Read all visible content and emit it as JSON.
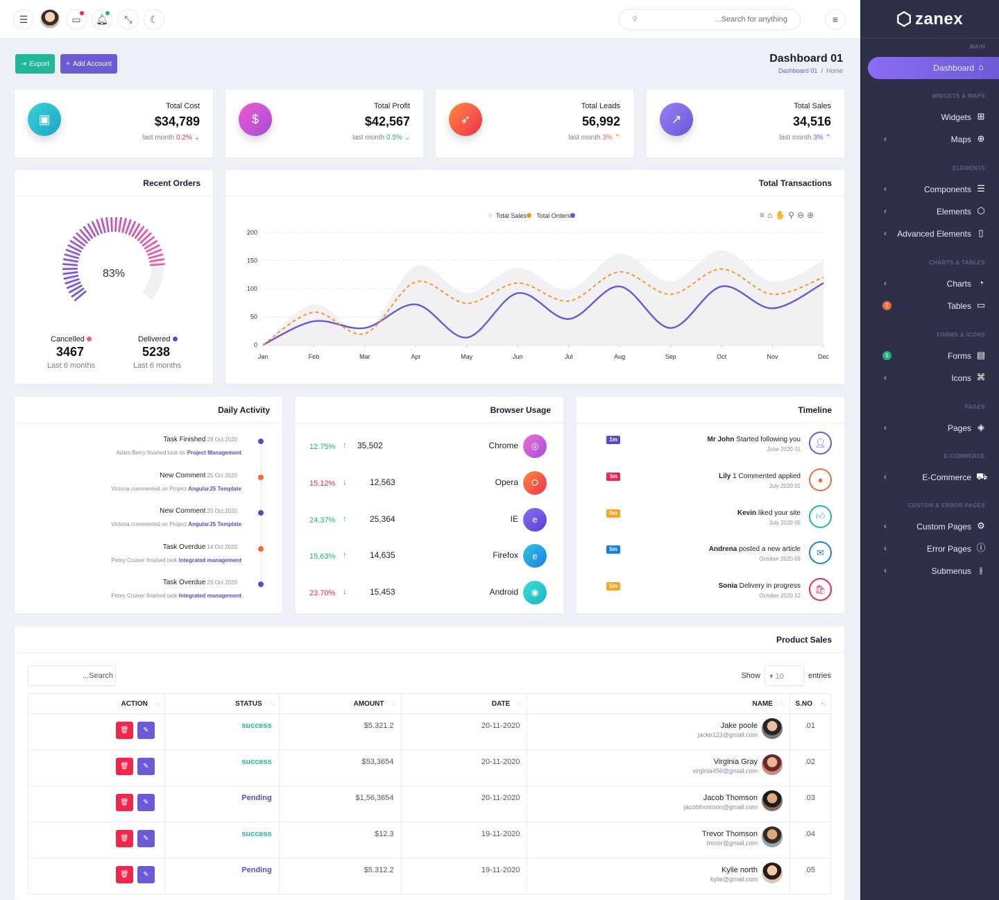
{
  "header": {
    "search_placeholder": "...Search for anything"
  },
  "sidebar": {
    "brand": "zanex",
    "sections": {
      "main": "MAIN",
      "widgets": "WIDGETS & MAPS",
      "elements": "ELEMENTS",
      "charts": "CHARTS & TABLES",
      "forms": "FORMS & ICONS",
      "pages": "PAGES",
      "ecom": "E-COMMERCE",
      "custom": "CUSTOM & ERROR PAGES"
    },
    "items": [
      {
        "label": "Dashboard"
      },
      {
        "label": "Widgets"
      },
      {
        "label": "Maps"
      },
      {
        "label": "Components"
      },
      {
        "label": "Elements"
      },
      {
        "label": "Advanced Elements"
      },
      {
        "label": "Charts"
      },
      {
        "label": "Tables",
        "badge": "2"
      },
      {
        "label": "Forms",
        "badge": "5"
      },
      {
        "label": "Icons"
      },
      {
        "label": "Pages"
      },
      {
        "label": "E-Commerce"
      },
      {
        "label": "Custom Pages"
      },
      {
        "label": "Error Pages"
      },
      {
        "label": "Submenus"
      }
    ]
  },
  "toolbar": {
    "export": "Export",
    "add_account": "Add Account"
  },
  "page": {
    "title": "Dashboard 01",
    "crumb_link": "Dashboard 01",
    "crumb_sep": "/",
    "crumb_current": "Home"
  },
  "stats": [
    {
      "title": "Total Cost",
      "value": "$34,789",
      "sub": "last month",
      "delta": "0.2%",
      "dir": "down",
      "color": "#e8344f"
    },
    {
      "title": "Total Profit",
      "value": "$42,567",
      "sub": "last month",
      "delta": "0.5%",
      "dir": "down",
      "color": "#21b27b"
    },
    {
      "title": "Total Leads",
      "value": "56,992",
      "sub": "last month",
      "delta": "3%",
      "dir": "up",
      "color": "#f26a3a"
    },
    {
      "title": "Total Sales",
      "value": "34,516",
      "sub": "last month",
      "delta": "3%",
      "dir": "up",
      "color": "#6a5ad6"
    }
  ],
  "recent_orders": {
    "title": "Recent Orders",
    "percent": "83%",
    "percent_value": 83,
    "cancelled_label": "Cancelled",
    "cancelled": "3467",
    "cancelled_sub": "Last 6 months",
    "delivered_label": "Delivered",
    "delivered": "5238",
    "delivered_sub": "Last 6 months"
  },
  "transactions": {
    "title": "Total Transactions",
    "legend": [
      "Total Sales",
      "Total Orders"
    ]
  },
  "chart_data": {
    "type": "line",
    "categories": [
      "Jan",
      "Feb",
      "Mar",
      "Apr",
      "May",
      "Jun",
      "Jul",
      "Aug",
      "Sep",
      "Oct",
      "Nov",
      "Dec"
    ],
    "ylim": [
      0,
      200
    ],
    "yticks": [
      0,
      50,
      100,
      150,
      200
    ],
    "series": [
      {
        "name": "Total Sales",
        "color": "#f5962b",
        "values": [
          0,
          58,
          20,
          112,
          74,
          110,
          78,
          130,
          90,
          135,
          90,
          120
        ]
      },
      {
        "name": "Total Orders",
        "color": "#6a56d6",
        "values": [
          0,
          42,
          30,
          72,
          13,
          92,
          46,
          104,
          30,
          104,
          65,
          110
        ]
      }
    ]
  },
  "daily_activity": {
    "title": "Daily Activity",
    "items": [
      {
        "title": "Task Finished",
        "date": "29 Oct 2020",
        "pre": "Adam Berry finished task on",
        "link": "Project Management",
        "color": "#5a4bc4"
      },
      {
        "title": "New Comment",
        "date": "25 Oct 2020",
        "pre": "Victoria commented on Project",
        "link": "AngularJS Template",
        "color": "#f26a3a"
      },
      {
        "title": "New Comment",
        "date": "25 Oct 2020",
        "pre": "Victoria commented on Project",
        "link": "AngularJS Template",
        "color": "#5a4bc4"
      },
      {
        "title": "Task Overdue",
        "date": "14 Oct 2020",
        "pre": "Petey Cruiser finished task",
        "link": "Integrated management",
        "color": "#f26a3a"
      },
      {
        "title": "Task Overdue",
        "date": "29 Oct 2020",
        "pre": "Petey Cruiser finished task",
        "link": "Integrated management",
        "color": "#5a4bc4"
      }
    ]
  },
  "browser_usage": {
    "title": "Browser Usage",
    "items": [
      {
        "pct": "12.75%",
        "dir": "up",
        "num": "35,502",
        "name": "Chrome"
      },
      {
        "pct": "15.12%",
        "dir": "down",
        "num": "12,563",
        "name": "Opera"
      },
      {
        "pct": "24.37%",
        "dir": "up",
        "num": "25,364",
        "name": "IE"
      },
      {
        "pct": "15,63%",
        "dir": "up",
        "num": "14,635",
        "name": "Firefox"
      },
      {
        "pct": "23.70%",
        "dir": "down",
        "num": "15,453",
        "name": "Android"
      }
    ]
  },
  "timeline": {
    "title": "Timeline",
    "items": [
      {
        "tag": "1m",
        "who": "Mr John",
        "action": "Started following you",
        "date": "June 2020 01"
      },
      {
        "tag": "3m",
        "who": "Lily",
        "action": "1 Commented applied",
        "date": "July 2020 01"
      },
      {
        "tag": "5m",
        "who": "Kevin",
        "action": "liked your site",
        "date": "July 2020 05"
      },
      {
        "tag": "5m",
        "who": "Andrena",
        "action": "posted a new article",
        "date": "October 2020 09"
      },
      {
        "tag": "5m",
        "who": "Sonia",
        "action": "Delivery in progress",
        "date": "October 2020 12"
      }
    ]
  },
  "product_sales": {
    "title": "Product Sales",
    "search_placeholder": "...Search",
    "show": "Show",
    "entries_value": "10",
    "entries": "entries",
    "columns": [
      "ACTION",
      "STATUS",
      "AMOUNT",
      "DATE",
      "NAME",
      "S.NO"
    ],
    "rows": [
      {
        "status": "success",
        "amount": "$5.321.2",
        "date": "20-11-2020",
        "name": "Jake poole",
        "email": "jacke123@gmail.com",
        "sno": ".01"
      },
      {
        "status": "success",
        "amount": "$53,3654",
        "date": "20-11-2020",
        "name": "Virginia Gray",
        "email": "virginia456@gmail.com",
        "sno": ".02"
      },
      {
        "status": "Pending",
        "amount": "$1,56,3654",
        "date": "20-11-2020",
        "name": "Jacob Thomson",
        "email": "jacobthomson@gmail.com",
        "sno": ".03"
      },
      {
        "status": "success",
        "amount": "$12.3",
        "date": "19-11-2020",
        "name": "Trevor Thomson",
        "email": "trevor@gmail.com",
        "sno": ".04"
      },
      {
        "status": "Pending",
        "amount": "$5.312.2",
        "date": "19-11-2020",
        "name": "Kylie north",
        "email": "kylie@gmail.com",
        "sno": ".05"
      }
    ]
  }
}
